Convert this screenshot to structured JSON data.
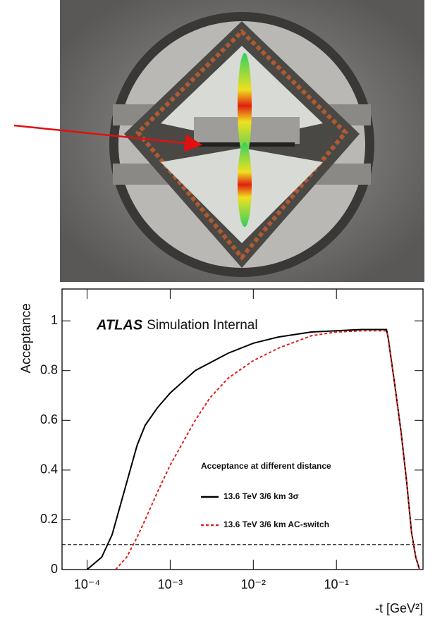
{
  "chart_data": {
    "type": "line",
    "annotation_bold": "ATLAS",
    "annotation": "Simulation Internal",
    "xlabel": "-t [GeV²]",
    "ylabel": "Acceptance",
    "legend_title": "Acceptance at different distance",
    "xscale": "log",
    "xlim": [
      5e-05,
      1.1
    ],
    "ylim": [
      0,
      1.128
    ],
    "xticks": [
      {
        "value": 0.0001,
        "label": "10⁻⁴"
      },
      {
        "value": 0.001,
        "label": "10⁻³"
      },
      {
        "value": 0.01,
        "label": "10⁻²"
      },
      {
        "value": 0.1,
        "label": "10⁻¹"
      }
    ],
    "yticks": [
      0,
      0.2,
      0.4,
      0.6,
      0.8,
      1
    ],
    "hline": 0.1,
    "grid": false,
    "series": [
      {
        "name": "13.6 TeV 3/6 km 3σ",
        "color": "#000000",
        "dash": false,
        "x": [
          0.0001,
          0.00015,
          0.0002,
          0.0003,
          0.0004,
          0.0005,
          0.0007,
          0.001,
          0.002,
          0.005,
          0.01,
          0.02,
          0.05,
          0.1,
          0.2,
          0.4,
          0.42,
          0.5,
          0.6,
          0.7,
          0.8,
          0.9,
          1.0
        ],
        "values": [
          0,
          0.05,
          0.14,
          0.35,
          0.5,
          0.58,
          0.65,
          0.71,
          0.8,
          0.87,
          0.91,
          0.935,
          0.955,
          0.96,
          0.965,
          0.965,
          0.93,
          0.75,
          0.55,
          0.35,
          0.15,
          0.05,
          0
        ]
      },
      {
        "name": "13.6 TeV 3/6 km AC-switch",
        "color": "#e0201b",
        "dash": true,
        "x": [
          0.00022,
          0.0003,
          0.0004,
          0.0005,
          0.0007,
          0.001,
          0.002,
          0.003,
          0.005,
          0.01,
          0.02,
          0.05,
          0.1,
          0.2,
          0.4,
          0.42,
          0.5,
          0.6,
          0.7,
          0.8,
          0.9,
          1.0
        ],
        "values": [
          0,
          0.05,
          0.13,
          0.2,
          0.31,
          0.42,
          0.6,
          0.69,
          0.77,
          0.84,
          0.89,
          0.94,
          0.955,
          0.96,
          0.96,
          0.93,
          0.75,
          0.55,
          0.35,
          0.15,
          0.05,
          0
        ]
      }
    ]
  }
}
